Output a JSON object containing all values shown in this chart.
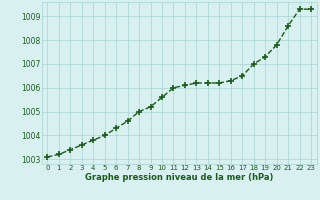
{
  "x": [
    0,
    1,
    2,
    3,
    4,
    5,
    6,
    7,
    8,
    9,
    10,
    11,
    12,
    13,
    14,
    15,
    16,
    17,
    18,
    19,
    20,
    21,
    22,
    23
  ],
  "y": [
    1003.1,
    1003.2,
    1003.4,
    1003.6,
    1003.8,
    1004.0,
    1004.3,
    1004.6,
    1005.0,
    1005.2,
    1005.6,
    1006.0,
    1006.1,
    1006.2,
    1006.2,
    1006.2,
    1006.3,
    1006.5,
    1007.0,
    1007.3,
    1007.8,
    1008.6,
    1009.3,
    1009.3
  ],
  "line_color": "#1a5c1a",
  "marker_color": "#1a5c1a",
  "bg_color": "#d8f0f0",
  "grid_color": "#b0d8d8",
  "xlabel": "Graphe pression niveau de la mer (hPa)",
  "xlabel_color": "#1a5c1a",
  "tick_color": "#1a5c1a",
  "ylim": [
    1002.8,
    1009.6
  ],
  "xlim": [
    -0.5,
    23.5
  ],
  "yticks": [
    1003,
    1004,
    1005,
    1006,
    1007,
    1008,
    1009
  ],
  "xticks": [
    0,
    1,
    2,
    3,
    4,
    5,
    6,
    7,
    8,
    9,
    10,
    11,
    12,
    13,
    14,
    15,
    16,
    17,
    18,
    19,
    20,
    21,
    22,
    23
  ],
  "marker_size": 4.0,
  "line_width": 1.0
}
